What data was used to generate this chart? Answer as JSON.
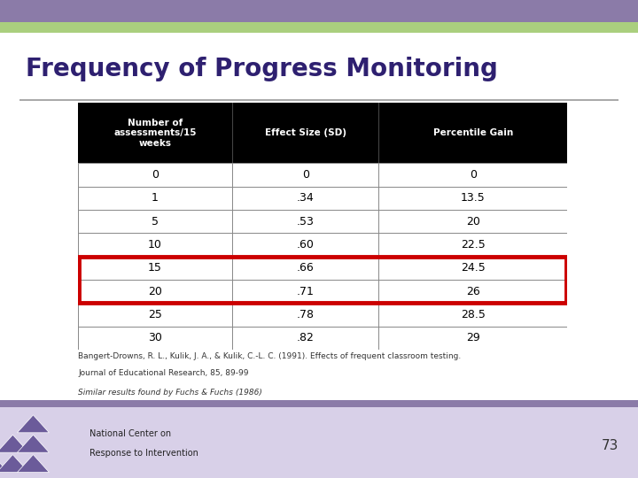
{
  "title": "Frequency of Progress Monitoring",
  "title_color": "#2E2070",
  "bg_color": "#FFFFFF",
  "top_bar_color": "#8B7BA8",
  "bottom_bar_color": "#AACF7E",
  "header_row": [
    "Number of\nassessments/15\nweeks",
    "Effect Size (SD)",
    "Percentile Gain"
  ],
  "table_rows": [
    [
      "0",
      "0",
      "0"
    ],
    [
      "1",
      ".34",
      "13.5"
    ],
    [
      "5",
      ".53",
      "20"
    ],
    [
      "10",
      ".60",
      "22.5"
    ],
    [
      "15",
      ".66",
      "24.5"
    ],
    [
      "20",
      ".71",
      "26"
    ],
    [
      "25",
      ".78",
      "28.5"
    ],
    [
      "30",
      ".82",
      "29"
    ]
  ],
  "highlighted_rows": [
    4,
    5
  ],
  "highlight_color": "#CC0000",
  "header_bg": "#000000",
  "header_text_color": "#FFFFFF",
  "cell_text_color": "#000000",
  "citation_line1": "Bangert-Drowns, R. L., Kulik, J. A., & Kulik, C.-L. C. (1991). Effects of frequent classroom testing.",
  "citation_line2": "Journal of Educational Research, 85, 89-99",
  "similar_results": "Similar results found by Fuchs & Fuchs (1986)",
  "page_number": "73",
  "footer_text_line1": "National Center on",
  "footer_text_line2": "Response to Intervention",
  "footer_bar_color": "#D8D0E8",
  "footer_separator_color": "#8B7BA8"
}
